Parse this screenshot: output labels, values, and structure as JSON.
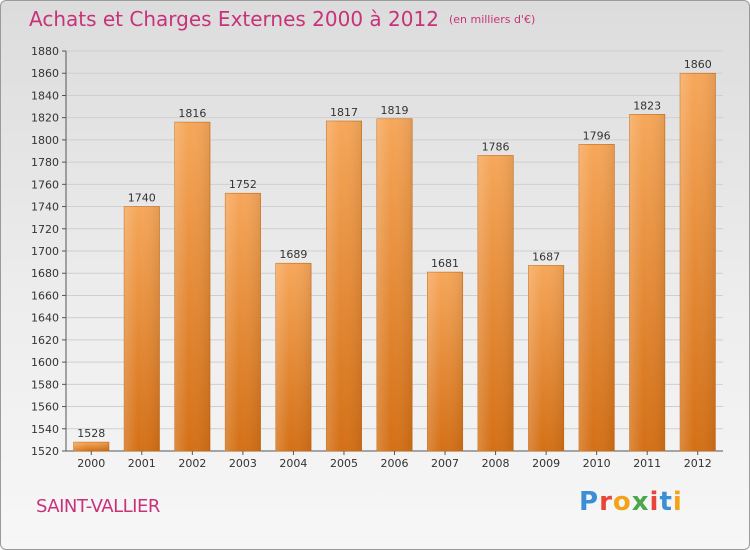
{
  "header": {
    "title": "Achats et Charges Externes 2000 à 2012",
    "subtitle": "(en milliers d'€)"
  },
  "footer": {
    "commune": "SAINT-VALLIER",
    "logo_letters": [
      "P",
      "r",
      "o",
      "x",
      "i",
      "t",
      "i"
    ],
    "logo_colors": [
      "#3a8fd6",
      "#e8443a",
      "#f2a317",
      "#4aa84a",
      "#e8443a",
      "#3a8fd6",
      "#f2a317"
    ]
  },
  "chart_data": {
    "type": "bar",
    "title": "Achats et Charges Externes 2000 à 2012",
    "subtitle": "(en milliers d'€)",
    "categories": [
      "2000",
      "2001",
      "2002",
      "2003",
      "2004",
      "2005",
      "2006",
      "2007",
      "2008",
      "2009",
      "2010",
      "2011",
      "2012"
    ],
    "values": [
      1528,
      1740,
      1816,
      1752,
      1689,
      1817,
      1819,
      1681,
      1786,
      1687,
      1796,
      1823,
      1860
    ],
    "ylim": [
      1520,
      1880
    ],
    "yticks": [
      1520,
      1540,
      1560,
      1580,
      1600,
      1620,
      1640,
      1660,
      1680,
      1700,
      1720,
      1740,
      1760,
      1780,
      1800,
      1820,
      1840,
      1860,
      1880
    ],
    "grid": true,
    "bar_color": "#f0a050",
    "bar_color_dark": "#d9751f"
  }
}
